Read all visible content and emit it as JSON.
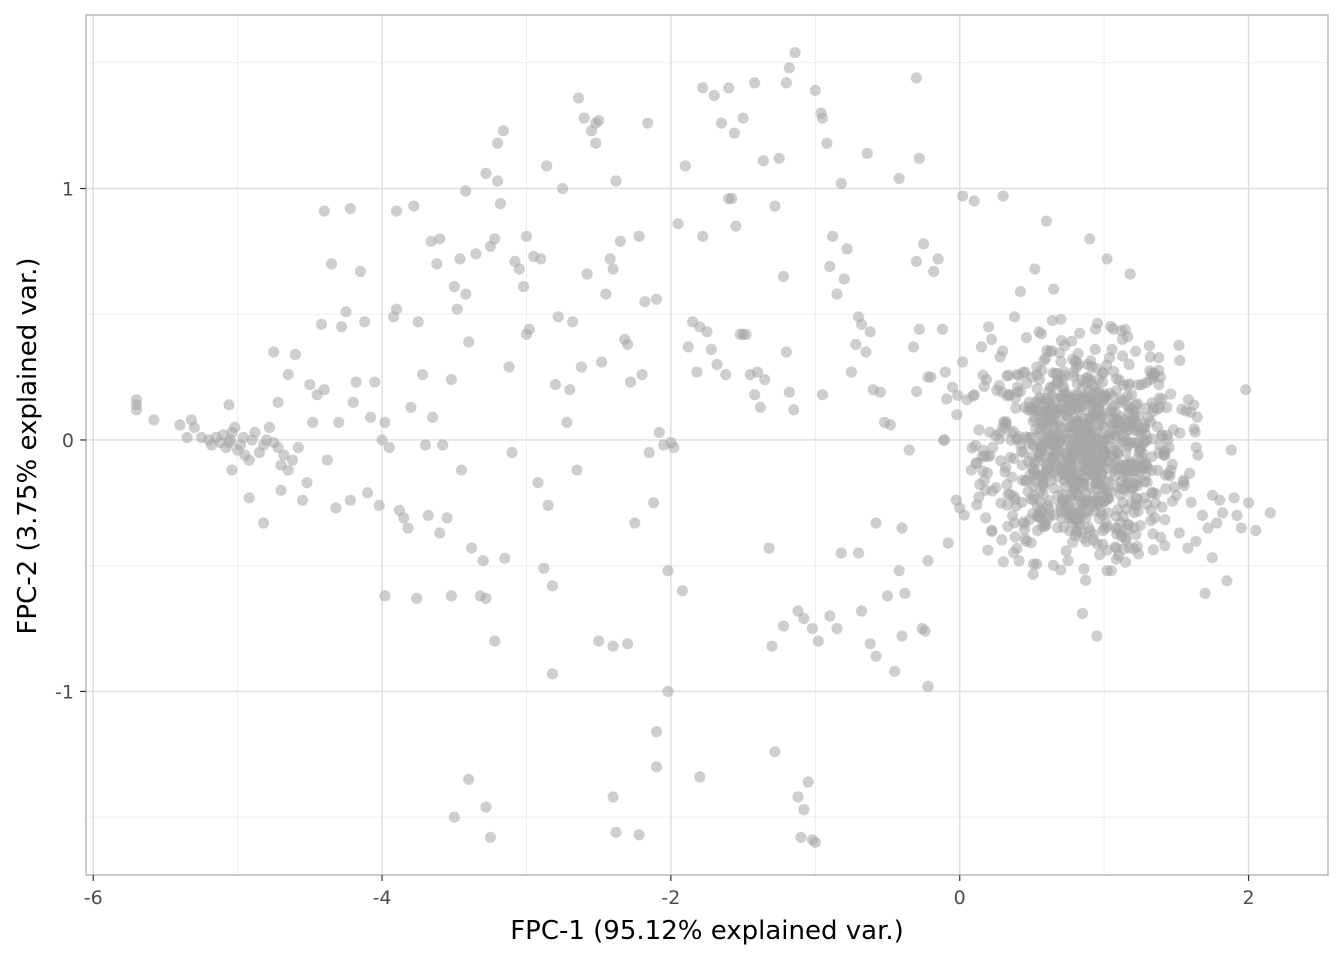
{
  "chart_data": {
    "type": "scatter",
    "title": "",
    "xlabel": "FPC-1 (95.12% explained var.)",
    "ylabel": "FPC-2 (3.75% explained var.)",
    "xlim": [
      -6.05,
      2.55
    ],
    "ylim": [
      -1.73,
      1.69
    ],
    "x_ticks": [
      -6,
      -4,
      -2,
      0,
      2
    ],
    "x_tick_labels": [
      "-6",
      "-4",
      "-2",
      "0",
      "2"
    ],
    "y_ticks": [
      -1,
      0,
      1
    ],
    "y_tick_labels": [
      "-1",
      "0",
      "1"
    ],
    "grid": true,
    "legend": "none",
    "point_color": "#a6a6a6",
    "point_opacity": 0.55,
    "background_color": "#ffffff",
    "points": [
      [
        -5.7,
        0.16
      ],
      [
        -5.7,
        0.14
      ],
      [
        -5.7,
        0.12
      ],
      [
        -5.58,
        0.08
      ],
      [
        -5.4,
        0.06
      ],
      [
        -5.35,
        0.01
      ],
      [
        -5.32,
        0.08
      ],
      [
        -5.3,
        0.05
      ],
      [
        -5.25,
        0.01
      ],
      [
        -5.2,
        0.0
      ],
      [
        -5.18,
        -0.02
      ],
      [
        -5.15,
        0.01
      ],
      [
        -5.12,
        -0.01
      ],
      [
        -5.1,
        0.02
      ],
      [
        -5.08,
        -0.03
      ],
      [
        -5.06,
        -0.01
      ],
      [
        -5.05,
        0.0
      ],
      [
        -5.04,
        0.03
      ],
      [
        -5.02,
        0.05
      ],
      [
        -5.0,
        -0.04
      ],
      [
        -4.98,
        -0.02
      ],
      [
        -4.96,
        0.01
      ],
      [
        -4.95,
        -0.06
      ],
      [
        -4.92,
        -0.08
      ],
      [
        -4.9,
        0.0
      ],
      [
        -4.88,
        0.03
      ],
      [
        -4.85,
        -0.05
      ],
      [
        -4.82,
        -0.02
      ],
      [
        -4.8,
        0.0
      ],
      [
        -4.78,
        0.05
      ],
      [
        -4.75,
        -0.01
      ],
      [
        -4.72,
        -0.03
      ],
      [
        -4.7,
        -0.1
      ],
      [
        -4.68,
        -0.06
      ],
      [
        -4.65,
        -0.12
      ],
      [
        -4.62,
        -0.08
      ],
      [
        -5.06,
        0.14
      ],
      [
        -5.04,
        -0.12
      ],
      [
        -4.92,
        -0.23
      ],
      [
        -4.82,
        -0.33
      ],
      [
        -4.75,
        0.35
      ],
      [
        -4.72,
        0.15
      ],
      [
        -4.7,
        -0.2
      ],
      [
        -4.65,
        0.26
      ],
      [
        -4.6,
        0.34
      ],
      [
        -4.58,
        -0.03
      ],
      [
        -4.55,
        -0.24
      ],
      [
        -4.52,
        -0.17
      ],
      [
        -4.5,
        0.22
      ],
      [
        -4.48,
        0.07
      ],
      [
        -4.45,
        0.18
      ],
      [
        -4.42,
        0.46
      ],
      [
        -4.4,
        0.2
      ],
      [
        -4.38,
        -0.08
      ],
      [
        -4.35,
        0.7
      ],
      [
        -4.32,
        -0.27
      ],
      [
        -4.3,
        0.07
      ],
      [
        -4.28,
        0.45
      ],
      [
        -4.25,
        0.51
      ],
      [
        -4.22,
        -0.24
      ],
      [
        -4.2,
        0.15
      ],
      [
        -4.18,
        0.23
      ],
      [
        -4.15,
        0.67
      ],
      [
        -4.12,
        0.47
      ],
      [
        -4.1,
        -0.21
      ],
      [
        -4.08,
        0.09
      ],
      [
        -4.05,
        0.23
      ],
      [
        -4.02,
        -0.26
      ],
      [
        -4.0,
        0.0
      ],
      [
        -3.98,
        0.07
      ],
      [
        -3.95,
        -0.03
      ],
      [
        -3.92,
        0.49
      ],
      [
        -3.9,
        0.91
      ],
      [
        -3.88,
        -0.28
      ],
      [
        -3.85,
        -0.31
      ],
      [
        -3.82,
        -0.35
      ],
      [
        -3.8,
        0.13
      ],
      [
        -3.78,
        0.93
      ],
      [
        -3.75,
        0.47
      ],
      [
        -3.72,
        0.26
      ],
      [
        -3.7,
        -0.02
      ],
      [
        -3.68,
        -0.3
      ],
      [
        -3.65,
        0.09
      ],
      [
        -3.62,
        0.7
      ],
      [
        -3.6,
        -0.37
      ],
      [
        -3.58,
        -0.02
      ],
      [
        -3.55,
        -0.31
      ],
      [
        -3.52,
        0.24
      ],
      [
        -3.5,
        0.61
      ],
      [
        -3.48,
        0.52
      ],
      [
        -3.45,
        -0.12
      ],
      [
        -3.42,
        0.58
      ],
      [
        -3.4,
        0.39
      ],
      [
        -3.38,
        -0.43
      ],
      [
        -3.35,
        0.74
      ],
      [
        -3.32,
        -0.62
      ],
      [
        -3.3,
        -0.48
      ],
      [
        -3.28,
        -0.63
      ],
      [
        -3.25,
        0.77
      ],
      [
        -3.22,
        0.8
      ],
      [
        -3.2,
        1.03
      ],
      [
        -3.18,
        0.94
      ],
      [
        -3.15,
        -0.47
      ],
      [
        -3.12,
        0.29
      ],
      [
        -3.1,
        -0.05
      ],
      [
        -3.08,
        0.71
      ],
      [
        -3.05,
        0.68
      ],
      [
        -3.02,
        0.61
      ],
      [
        -3.0,
        0.42
      ],
      [
        -2.98,
        0.44
      ],
      [
        -2.95,
        0.73
      ],
      [
        -2.92,
        -0.17
      ],
      [
        -2.9,
        0.72
      ],
      [
        -2.88,
        -0.51
      ],
      [
        -2.85,
        -0.26
      ],
      [
        -2.82,
        -0.58
      ],
      [
        -2.8,
        0.22
      ],
      [
        -2.78,
        0.49
      ],
      [
        -2.75,
        1.0
      ],
      [
        -2.72,
        0.07
      ],
      [
        -2.7,
        0.2
      ],
      [
        -2.68,
        0.47
      ],
      [
        -2.65,
        -0.12
      ],
      [
        -2.62,
        0.29
      ],
      [
        -2.6,
        1.28
      ],
      [
        -2.58,
        0.66
      ],
      [
        -2.55,
        1.23
      ],
      [
        -2.52,
        1.18
      ],
      [
        -2.5,
        -0.8
      ],
      [
        -2.48,
        0.31
      ],
      [
        -2.45,
        0.58
      ],
      [
        -2.42,
        0.72
      ],
      [
        -2.4,
        0.68
      ],
      [
        -2.38,
        1.03
      ],
      [
        -2.35,
        0.79
      ],
      [
        -2.32,
        0.4
      ],
      [
        -2.3,
        0.38
      ],
      [
        -2.28,
        0.23
      ],
      [
        -2.25,
        -0.33
      ],
      [
        -2.22,
        0.81
      ],
      [
        -2.2,
        0.26
      ],
      [
        -2.18,
        0.55
      ],
      [
        -2.15,
        -0.05
      ],
      [
        -2.12,
        -0.25
      ],
      [
        -2.1,
        0.56
      ],
      [
        -2.08,
        0.03
      ],
      [
        -2.05,
        -0.02
      ],
      [
        -2.02,
        -0.52
      ],
      [
        -2.0,
        -0.01
      ],
      [
        -1.98,
        -0.03
      ],
      [
        -1.95,
        0.86
      ],
      [
        -1.92,
        -0.6
      ],
      [
        -1.9,
        1.09
      ],
      [
        -1.88,
        0.37
      ],
      [
        -1.85,
        0.47
      ],
      [
        -1.82,
        0.27
      ],
      [
        -1.8,
        0.45
      ],
      [
        -1.78,
        0.81
      ],
      [
        -1.75,
        0.43
      ],
      [
        -1.72,
        0.36
      ],
      [
        -1.7,
        1.37
      ],
      [
        -1.68,
        0.3
      ],
      [
        -1.65,
        1.26
      ],
      [
        -1.62,
        0.26
      ],
      [
        -1.6,
        0.96
      ],
      [
        -1.58,
        0.96
      ],
      [
        -1.55,
        0.85
      ],
      [
        -1.52,
        0.42
      ],
      [
        -1.5,
        0.42
      ],
      [
        -1.48,
        0.42
      ],
      [
        -1.45,
        0.26
      ],
      [
        -1.42,
        0.18
      ],
      [
        -1.4,
        0.27
      ],
      [
        -1.38,
        0.13
      ],
      [
        -1.35,
        0.24
      ],
      [
        -1.32,
        -0.43
      ],
      [
        -1.3,
        -0.82
      ],
      [
        -1.28,
        0.93
      ],
      [
        -1.25,
        1.12
      ],
      [
        -1.22,
        0.65
      ],
      [
        -1.2,
        0.35
      ],
      [
        -1.18,
        0.19
      ],
      [
        -1.15,
        0.12
      ],
      [
        -1.12,
        -1.42
      ],
      [
        -1.1,
        -1.58
      ],
      [
        -1.08,
        -1.47
      ],
      [
        -1.05,
        -1.36
      ],
      [
        -1.02,
        -1.59
      ],
      [
        -1.0,
        -1.6
      ],
      [
        -0.98,
        -0.8
      ],
      [
        -0.95,
        1.28
      ],
      [
        -0.92,
        1.18
      ],
      [
        -0.9,
        0.69
      ],
      [
        -0.88,
        0.81
      ],
      [
        -0.85,
        0.58
      ],
      [
        -0.82,
        1.02
      ],
      [
        -0.8,
        0.64
      ],
      [
        -0.78,
        0.76
      ],
      [
        -0.75,
        0.27
      ],
      [
        -0.72,
        0.38
      ],
      [
        -0.7,
        0.49
      ],
      [
        -0.68,
        0.46
      ],
      [
        -0.65,
        0.35
      ],
      [
        -0.62,
        0.43
      ],
      [
        -0.6,
        0.2
      ],
      [
        -0.58,
        -0.33
      ],
      [
        -0.55,
        0.19
      ],
      [
        -0.52,
        0.07
      ],
      [
        -0.5,
        -0.62
      ],
      [
        -0.48,
        0.06
      ],
      [
        -0.45,
        -0.92
      ],
      [
        -0.42,
        -0.52
      ],
      [
        -0.4,
        -0.35
      ],
      [
        -0.38,
        -0.61
      ],
      [
        -0.35,
        -0.04
      ],
      [
        -0.32,
        0.37
      ],
      [
        -0.3,
        0.71
      ],
      [
        -0.28,
        0.44
      ],
      [
        -0.25,
        0.78
      ],
      [
        -0.22,
        -0.48
      ],
      [
        -0.2,
        0.25
      ],
      [
        -0.18,
        0.67
      ],
      [
        -0.15,
        0.72
      ],
      [
        -0.12,
        0.44
      ],
      [
        -0.1,
        0.27
      ],
      [
        -0.08,
        -0.41
      ],
      [
        -0.05,
        0.21
      ],
      [
        -0.02,
        0.1
      ],
      [
        0.0,
        -0.27
      ],
      [
        0.02,
        0.31
      ],
      [
        0.05,
        0.16
      ],
      [
        0.08,
        -0.12
      ],
      [
        0.1,
        0.18
      ],
      [
        0.12,
        -0.09
      ],
      [
        0.15,
        0.37
      ],
      [
        0.18,
        -0.31
      ],
      [
        0.2,
        0.45
      ],
      [
        0.22,
        0.4
      ],
      [
        0.25,
        -0.19
      ],
      [
        0.28,
        0.33
      ],
      [
        0.3,
        0.05
      ],
      [
        0.32,
        0.06
      ],
      [
        0.35,
        -0.07
      ],
      [
        0.38,
        0.49
      ],
      [
        0.4,
        0.21
      ],
      [
        0.42,
        0.59
      ],
      [
        0.45,
        0.13
      ],
      [
        0.48,
        0.01
      ],
      [
        0.5,
        0.25
      ],
      [
        0.52,
        0.68
      ],
      [
        0.55,
        0.43
      ],
      [
        0.58,
        -0.01
      ],
      [
        0.6,
        0.04
      ],
      [
        0.62,
        0.15
      ],
      [
        0.65,
        0.6
      ],
      [
        0.68,
        -0.04
      ],
      [
        0.7,
        0.48
      ],
      [
        0.72,
        -0.14
      ],
      [
        0.75,
        -0.48
      ],
      [
        0.78,
        -0.22
      ],
      [
        0.8,
        -0.38
      ],
      [
        0.82,
        0.02
      ],
      [
        0.85,
        -0.69
      ],
      [
        0.88,
        -0.24
      ],
      [
        0.9,
        0.16
      ],
      [
        0.92,
        -0.08
      ],
      [
        0.95,
        -0.78
      ],
      [
        0.98,
        0.08
      ],
      [
        1.0,
        -0.35
      ],
      [
        1.02,
        -0.52
      ],
      [
        1.05,
        0.03
      ],
      [
        1.08,
        -0.35
      ],
      [
        1.1,
        -0.46
      ],
      [
        1.12,
        0.16
      ],
      [
        1.15,
        -0.39
      ],
      [
        1.18,
        -0.11
      ],
      [
        1.2,
        0.08
      ],
      [
        1.22,
        -0.26
      ],
      [
        1.25,
        -0.34
      ],
      [
        1.28,
        -0.01
      ],
      [
        1.3,
        -0.11
      ],
      [
        1.32,
        0.33
      ],
      [
        1.35,
        -0.31
      ],
      [
        1.38,
        0.22
      ],
      [
        1.4,
        0.02
      ],
      [
        1.42,
        -0.42
      ],
      [
        1.45,
        -0.03
      ],
      [
        1.48,
        0.04
      ],
      [
        1.5,
        -0.22
      ],
      [
        1.52,
        -0.37
      ],
      [
        1.55,
        -0.16
      ],
      [
        1.58,
        -0.43
      ],
      [
        1.6,
        0.11
      ],
      [
        1.62,
        0.14
      ],
      [
        1.65,
        -0.06
      ],
      [
        1.68,
        -0.3
      ],
      [
        1.7,
        -0.61
      ],
      [
        1.72,
        -0.35
      ],
      [
        1.75,
        -0.22
      ],
      [
        1.78,
        -0.33
      ],
      [
        1.8,
        -0.24
      ],
      [
        1.82,
        -0.29
      ],
      [
        1.85,
        -0.56
      ],
      [
        1.88,
        -0.04
      ],
      [
        1.9,
        -0.23
      ],
      [
        1.92,
        -0.3
      ],
      [
        1.95,
        -0.35
      ],
      [
        1.98,
        0.2
      ],
      [
        2.0,
        -0.25
      ],
      [
        2.05,
        -0.36
      ],
      [
        2.15,
        -0.29
      ],
      [
        -1.2,
        1.42
      ],
      [
        -1.18,
        1.48
      ],
      [
        -1.14,
        1.54
      ],
      [
        -1.78,
        1.4
      ],
      [
        -1.6,
        1.4
      ],
      [
        -1.42,
        1.42
      ],
      [
        -0.3,
        1.44
      ],
      [
        -0.22,
        0.25
      ],
      [
        -0.95,
        0.18
      ],
      [
        -0.82,
        -0.45
      ],
      [
        -0.7,
        -0.45
      ],
      [
        -0.62,
        -0.81
      ],
      [
        -0.58,
        -0.86
      ],
      [
        -0.68,
        -0.68
      ],
      [
        -1.02,
        -0.75
      ],
      [
        -1.08,
        -0.71
      ],
      [
        -1.12,
        -0.68
      ],
      [
        -1.22,
        -0.74
      ],
      [
        -0.9,
        -0.7
      ],
      [
        -0.85,
        -0.75
      ],
      [
        -0.4,
        -0.78
      ],
      [
        -0.26,
        -0.75
      ],
      [
        -0.24,
        -0.76
      ],
      [
        -0.22,
        -0.98
      ],
      [
        -1.28,
        -1.24
      ],
      [
        -1.8,
        -1.34
      ],
      [
        -2.02,
        -1.0
      ],
      [
        -2.1,
        -1.16
      ],
      [
        -2.1,
        -1.3
      ],
      [
        -2.22,
        -1.57
      ],
      [
        -2.4,
        -1.42
      ],
      [
        -2.38,
        -1.56
      ],
      [
        -2.3,
        -0.81
      ],
      [
        -2.4,
        -0.82
      ],
      [
        -2.82,
        -0.93
      ],
      [
        -3.22,
        -0.8
      ],
      [
        -3.5,
        -1.5
      ],
      [
        -3.4,
        -1.35
      ],
      [
        -3.28,
        -1.46
      ],
      [
        -3.25,
        -1.58
      ],
      [
        -3.98,
        -0.62
      ],
      [
        -3.76,
        -0.63
      ],
      [
        -3.52,
        -0.62
      ],
      [
        -4.4,
        0.91
      ],
      [
        -4.22,
        0.92
      ],
      [
        -3.9,
        0.52
      ],
      [
        -3.66,
        0.79
      ],
      [
        -3.6,
        0.8
      ],
      [
        -3.46,
        0.72
      ],
      [
        -3.42,
        0.99
      ],
      [
        -3.28,
        1.06
      ],
      [
        -3.2,
        1.18
      ],
      [
        -3.16,
        1.23
      ],
      [
        -3.0,
        0.81
      ],
      [
        -2.86,
        1.09
      ],
      [
        -2.64,
        1.36
      ],
      [
        -2.5,
        1.27
      ],
      [
        -2.52,
        1.26
      ],
      [
        -2.16,
        1.26
      ],
      [
        -1.5,
        1.28
      ],
      [
        -1.56,
        1.22
      ],
      [
        -1.36,
        1.11
      ],
      [
        -1.0,
        1.39
      ],
      [
        -0.96,
        1.3
      ],
      [
        -0.64,
        1.14
      ],
      [
        -0.28,
        1.12
      ],
      [
        -0.42,
        1.04
      ],
      [
        0.02,
        0.97
      ],
      [
        0.1,
        0.95
      ],
      [
        0.3,
        0.97
      ],
      [
        0.6,
        0.87
      ],
      [
        0.9,
        0.8
      ],
      [
        1.02,
        0.72
      ],
      [
        1.18,
        0.66
      ]
    ],
    "cluster": {
      "center": [
        0.85,
        -0.05
      ],
      "spread": [
        0.33,
        0.21
      ],
      "count": 900
    }
  }
}
